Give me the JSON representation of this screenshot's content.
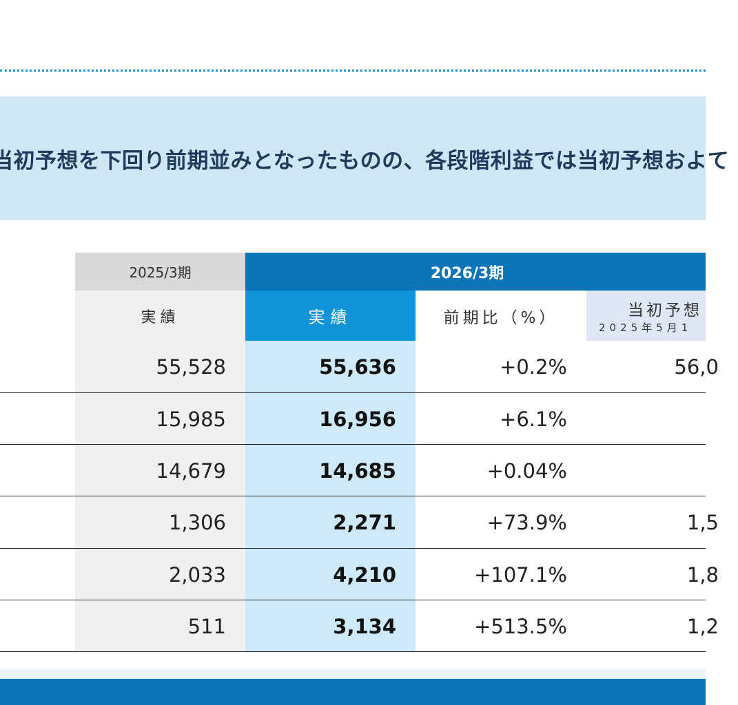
{
  "headline": "当初予想を下回り前期並みとなったものの、各段階利益では当初予想およて",
  "table": {
    "prev_year": "2025/3期",
    "current_year": "2026/3期",
    "prev_actual_label": "実績",
    "cur_actual_label": "実績",
    "yoy_label": "前期比（%）",
    "forecast_label": "当初予想",
    "forecast_sub_label": "2025年5月1",
    "rows": [
      {
        "prev": "55,528",
        "actual": "55,636",
        "yoy": "+0.2%",
        "forecast": "56,0"
      },
      {
        "prev": "15,985",
        "actual": "16,956",
        "yoy": "+6.1%",
        "forecast": ""
      },
      {
        "prev": "14,679",
        "actual": "14,685",
        "yoy": "+0.04%",
        "forecast": ""
      },
      {
        "prev": "1,306",
        "actual": "2,271",
        "yoy": "+73.9%",
        "forecast": "1,5"
      },
      {
        "prev": "2,033",
        "actual": "4,210",
        "yoy": "+107.1%",
        "forecast": "1,8"
      },
      {
        "prev": "511",
        "actual": "3,134",
        "yoy": "+513.5%",
        "forecast": "1,2"
      }
    ]
  }
}
